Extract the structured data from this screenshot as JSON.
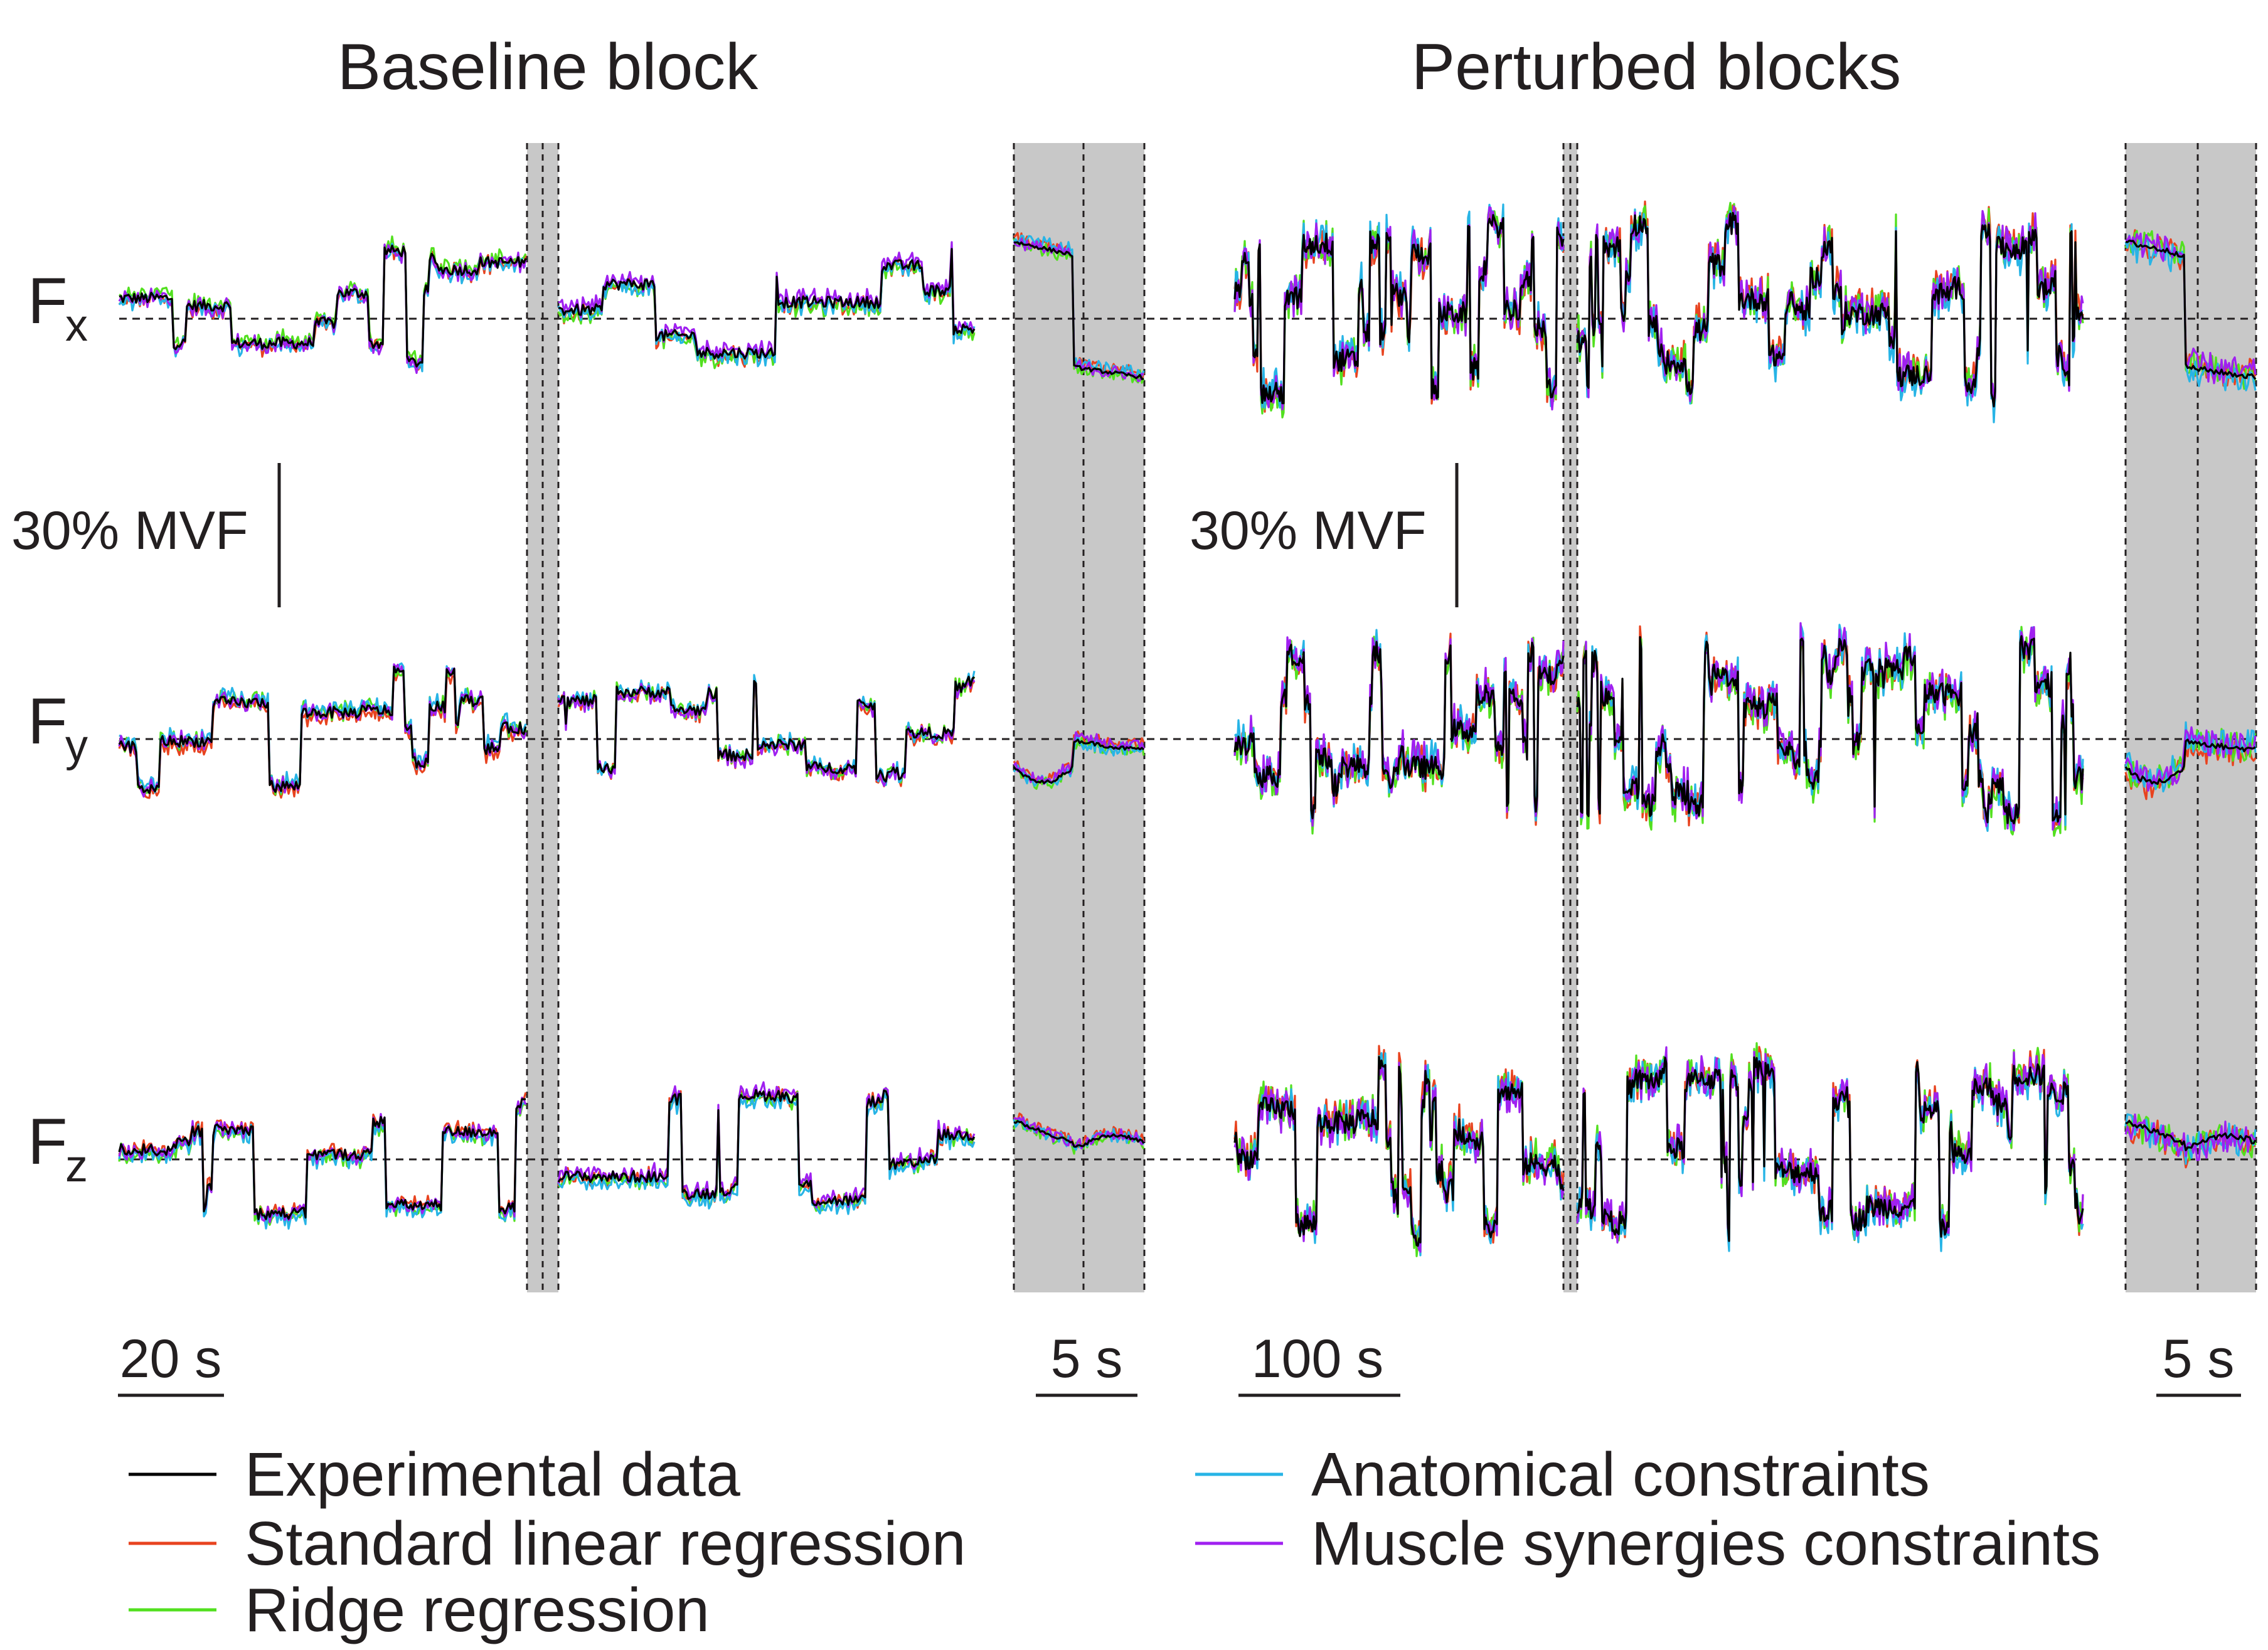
{
  "titles": {
    "baseline": "Baseline block",
    "perturbed": "Perturbed blocks"
  },
  "force_labels": {
    "fx": {
      "main": "F",
      "sub": "x"
    },
    "fy": {
      "main": "F",
      "sub": "y"
    },
    "fz": {
      "main": "F",
      "sub": "z"
    }
  },
  "scale_bars": {
    "baseline_force": "30% MVF",
    "perturbed_force": "30% MVF",
    "baseline_time": "20 s",
    "baseline_zoom_time": "5 s",
    "perturbed_time": "100 s",
    "perturbed_zoom_time": "5 s"
  },
  "legend": [
    {
      "label": "Experimental data",
      "color": "#000000"
    },
    {
      "label": "Standard linear regression",
      "color": "#e8431f"
    },
    {
      "label": "Ridge regression",
      "color": "#52e01f"
    },
    {
      "label": "Anatomical constraints",
      "color": "#27b4e6"
    },
    {
      "label": "Muscle synergies constraints",
      "color": "#a020f0"
    }
  ],
  "chart_data": {
    "type": "line",
    "units": "% MVF",
    "force_scale_bar_pct_mvf": 30,
    "panels": [
      {
        "block": "Baseline block",
        "view": "full",
        "time_scale_bar_s": 20,
        "signals": [
          "Fx",
          "Fy",
          "Fz"
        ],
        "zero_reference": 0
      },
      {
        "block": "Baseline block",
        "view": "zoom",
        "time_scale_bar_s": 5,
        "signals": [
          "Fx",
          "Fy",
          "Fz"
        ],
        "zero_reference": 0
      },
      {
        "block": "Perturbed blocks",
        "view": "full",
        "time_scale_bar_s": 100,
        "signals": [
          "Fx",
          "Fy",
          "Fz"
        ],
        "zero_reference": 0
      },
      {
        "block": "Perturbed blocks",
        "view": "zoom",
        "time_scale_bar_s": 5,
        "signals": [
          "Fx",
          "Fy",
          "Fz"
        ],
        "zero_reference": 0
      }
    ],
    "series": [
      {
        "name": "Experimental data",
        "color": "#000000"
      },
      {
        "name": "Standard linear regression",
        "color": "#e8431f"
      },
      {
        "name": "Ridge regression",
        "color": "#52e01f"
      },
      {
        "name": "Anatomical constraints",
        "color": "#27b4e6"
      },
      {
        "name": "Muscle synergies constraints",
        "color": "#a020f0"
      }
    ]
  }
}
